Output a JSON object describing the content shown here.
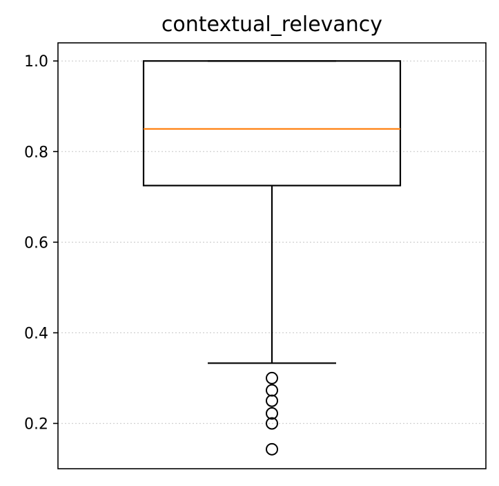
{
  "chart_data": {
    "type": "box",
    "title": "contextual_relevancy",
    "xlabel": "",
    "ylabel": "",
    "ylim": [
      0.1,
      1.04
    ],
    "yticks": [
      0.2,
      0.4,
      0.6,
      0.8,
      1.0
    ],
    "ytick_labels": [
      "0.2",
      "0.4",
      "0.6",
      "0.8",
      "1.0"
    ],
    "grid": "y-dotted",
    "series": [
      {
        "q1": 0.725,
        "median": 0.85,
        "q3": 1.0,
        "whisker_low": 0.333,
        "whisker_high": 1.0,
        "outliers": [
          0.3,
          0.273,
          0.25,
          0.222,
          0.2,
          0.143
        ]
      }
    ]
  },
  "colors": {
    "median": "#ff7f0e",
    "box": "#000000",
    "grid": "#d0d0d0"
  }
}
